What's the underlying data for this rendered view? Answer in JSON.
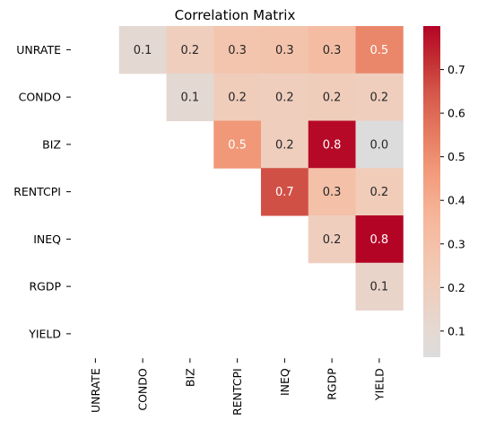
{
  "chart_data": {
    "type": "heatmap",
    "title": "Correlation Matrix",
    "row_labels": [
      "UNRATE",
      "CONDO",
      "BIZ",
      "RENTCPI",
      "INEQ",
      "RGDP",
      "YIELD"
    ],
    "col_labels": [
      "UNRATE",
      "CONDO",
      "BIZ",
      "RENTCPI",
      "INEQ",
      "RGDP",
      "YIELD"
    ],
    "mask": "lower triangle and diagonal hidden",
    "cells": [
      {
        "row": "UNRATE",
        "col": "CONDO",
        "value": 0.1,
        "label": "0.1"
      },
      {
        "row": "UNRATE",
        "col": "BIZ",
        "value": 0.2,
        "label": "0.2"
      },
      {
        "row": "UNRATE",
        "col": "RENTCPI",
        "value": 0.27,
        "label": "0.3"
      },
      {
        "row": "UNRATE",
        "col": "INEQ",
        "value": 0.28,
        "label": "0.3"
      },
      {
        "row": "UNRATE",
        "col": "RGDP",
        "value": 0.32,
        "label": "0.3"
      },
      {
        "row": "UNRATE",
        "col": "YIELD",
        "value": 0.52,
        "label": "0.5"
      },
      {
        "row": "CONDO",
        "col": "BIZ",
        "value": 0.1,
        "label": "0.1"
      },
      {
        "row": "CONDO",
        "col": "RENTCPI",
        "value": 0.21,
        "label": "0.2"
      },
      {
        "row": "CONDO",
        "col": "INEQ",
        "value": 0.2,
        "label": "0.2"
      },
      {
        "row": "CONDO",
        "col": "RGDP",
        "value": 0.21,
        "label": "0.2"
      },
      {
        "row": "CONDO",
        "col": "YIELD",
        "value": 0.2,
        "label": "0.2"
      },
      {
        "row": "BIZ",
        "col": "RENTCPI",
        "value": 0.47,
        "label": "0.5"
      },
      {
        "row": "BIZ",
        "col": "INEQ",
        "value": 0.2,
        "label": "0.2"
      },
      {
        "row": "BIZ",
        "col": "RGDP",
        "value": 0.79,
        "label": "0.8"
      },
      {
        "row": "BIZ",
        "col": "YIELD",
        "value": 0.04,
        "label": "0.0"
      },
      {
        "row": "RENTCPI",
        "col": "INEQ",
        "value": 0.66,
        "label": "0.7"
      },
      {
        "row": "RENTCPI",
        "col": "RGDP",
        "value": 0.3,
        "label": "0.3"
      },
      {
        "row": "RENTCPI",
        "col": "YIELD",
        "value": 0.22,
        "label": "0.2"
      },
      {
        "row": "INEQ",
        "col": "RGDP",
        "value": 0.2,
        "label": "0.2"
      },
      {
        "row": "INEQ",
        "col": "YIELD",
        "value": 0.8,
        "label": "0.8"
      },
      {
        "row": "RGDP",
        "col": "YIELD",
        "value": 0.14,
        "label": "0.1"
      }
    ],
    "colorbar": {
      "vmin": 0.04,
      "vmax": 0.8,
      "ticks": [
        0.1,
        0.2,
        0.3,
        0.4,
        0.5,
        0.6,
        0.7
      ],
      "tick_labels": [
        "0.1",
        "0.2",
        "0.3",
        "0.4",
        "0.5",
        "0.6",
        "0.7"
      ]
    },
    "colormap": "coolwarm (diverging, centered at 0)",
    "colors": {
      "low": "#dddcdc",
      "mid": "#f4c5ad",
      "high": "#b40426"
    }
  }
}
